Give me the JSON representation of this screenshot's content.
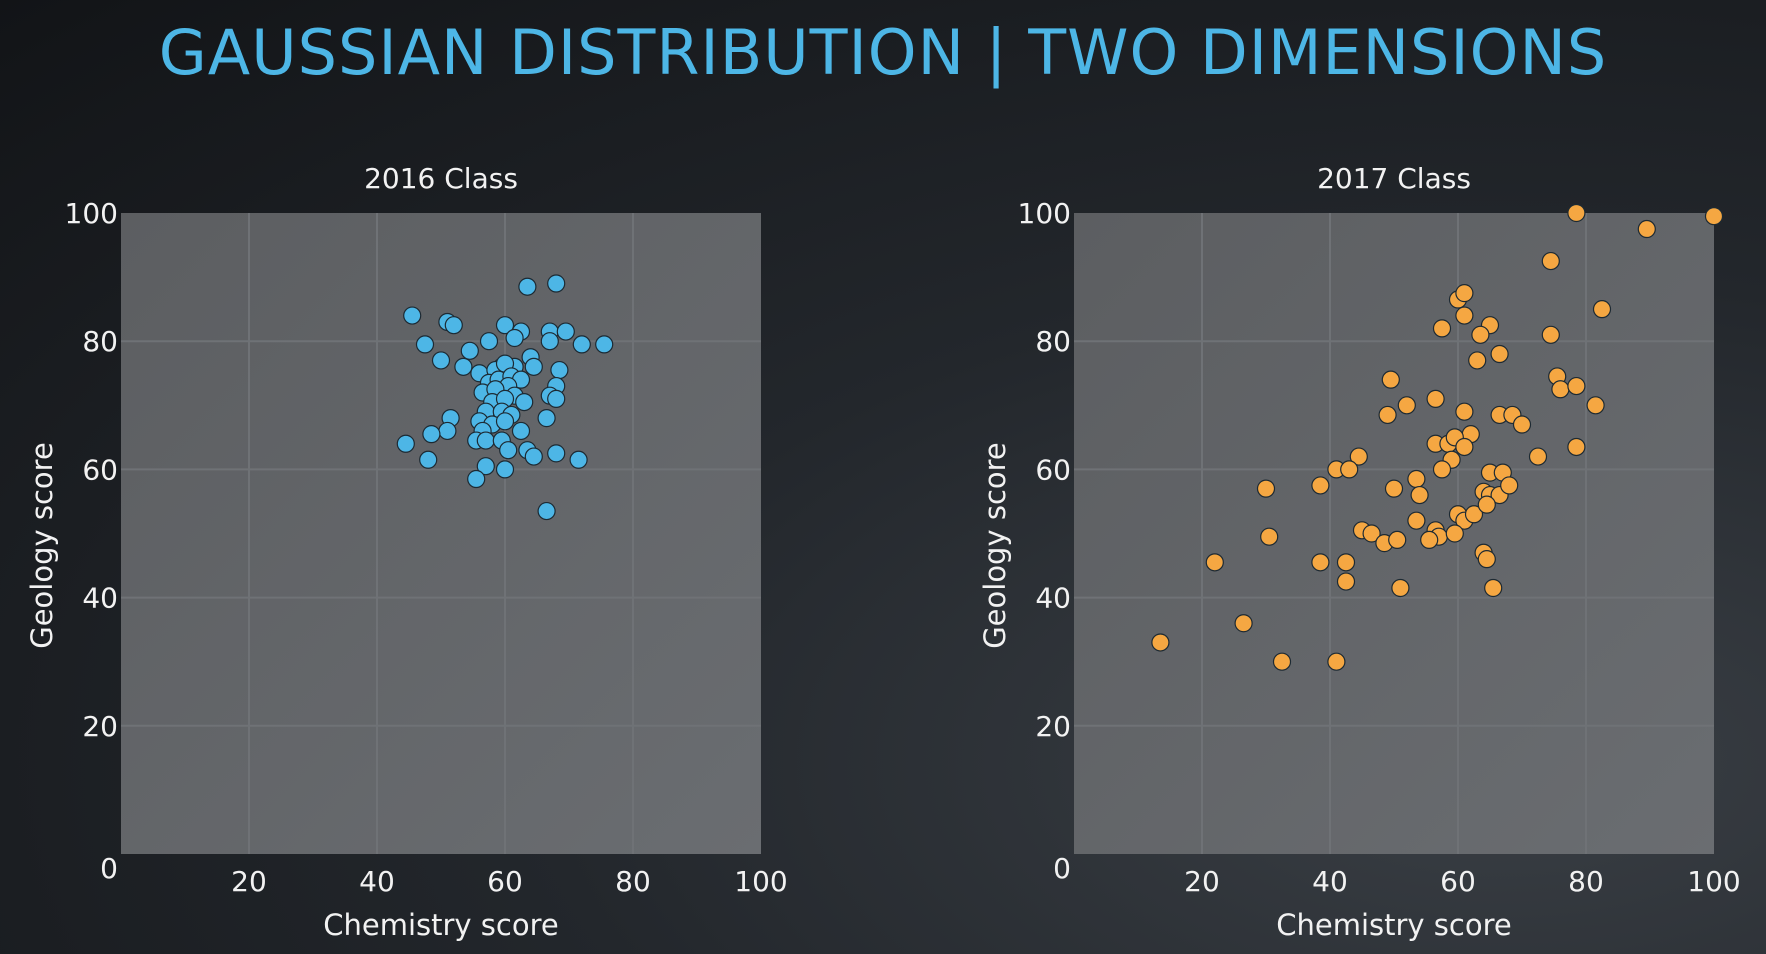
{
  "slide": {
    "title": "GAUSSIAN DISTRIBUTION | TWO DIMENSIONS"
  },
  "chart_data": [
    {
      "type": "scatter",
      "title": "2016 Class",
      "xlabel": "Chemistry score",
      "ylabel": "Geology score",
      "xlim": [
        0,
        100
      ],
      "ylim": [
        0,
        100
      ],
      "xticks": [
        20,
        40,
        60,
        80,
        100
      ],
      "yticks": [
        20,
        40,
        60,
        80,
        100
      ],
      "origin_label": "0",
      "grid": true,
      "color": "#4db6e6",
      "points": [
        [
          63.5,
          88.5
        ],
        [
          68,
          89
        ],
        [
          45.5,
          84
        ],
        [
          51,
          83
        ],
        [
          52,
          82.5
        ],
        [
          60,
          82.5
        ],
        [
          62.5,
          81.5
        ],
        [
          67,
          81.5
        ],
        [
          69.5,
          81.5
        ],
        [
          67,
          80
        ],
        [
          57.5,
          80
        ],
        [
          61.5,
          80.5
        ],
        [
          47.5,
          79.5
        ],
        [
          72,
          79.5
        ],
        [
          75.5,
          79.5
        ],
        [
          54.5,
          78.5
        ],
        [
          50,
          77
        ],
        [
          64,
          77.5
        ],
        [
          53.5,
          76
        ],
        [
          59.5,
          76
        ],
        [
          61.5,
          76
        ],
        [
          64.5,
          76
        ],
        [
          56,
          75
        ],
        [
          58.5,
          75.5
        ],
        [
          60,
          76.5
        ],
        [
          68.5,
          75.5
        ],
        [
          57.5,
          73.5
        ],
        [
          59,
          74
        ],
        [
          61,
          74.5
        ],
        [
          62.5,
          74
        ],
        [
          60.5,
          73
        ],
        [
          68,
          73
        ],
        [
          56.5,
          72
        ],
        [
          58.5,
          72.5
        ],
        [
          61.5,
          71.5
        ],
        [
          67,
          71.5
        ],
        [
          68,
          71
        ],
        [
          58,
          70.5
        ],
        [
          60,
          71
        ],
        [
          63,
          70.5
        ],
        [
          57,
          69
        ],
        [
          59.5,
          69
        ],
        [
          61,
          68.5
        ],
        [
          66.5,
          68
        ],
        [
          51.5,
          68
        ],
        [
          56,
          67.5
        ],
        [
          58,
          67
        ],
        [
          60,
          67.5
        ],
        [
          51,
          66
        ],
        [
          48.5,
          65.5
        ],
        [
          56.5,
          66
        ],
        [
          62.5,
          66
        ],
        [
          55.5,
          64.5
        ],
        [
          57,
          64.5
        ],
        [
          59.5,
          64.5
        ],
        [
          44.5,
          64
        ],
        [
          60.5,
          63
        ],
        [
          63.5,
          63
        ],
        [
          64.5,
          62
        ],
        [
          68,
          62.5
        ],
        [
          48,
          61.5
        ],
        [
          71.5,
          61.5
        ],
        [
          57,
          60.5
        ],
        [
          60,
          60
        ],
        [
          55.5,
          58.5
        ],
        [
          66.5,
          53.5
        ]
      ]
    },
    {
      "type": "scatter",
      "title": "2017 Class",
      "xlabel": "Chemistry score",
      "ylabel": "Geology score",
      "xlim": [
        0,
        100
      ],
      "ylim": [
        0,
        100
      ],
      "xticks": [
        20,
        40,
        60,
        80,
        100
      ],
      "yticks": [
        20,
        40,
        60,
        80,
        100
      ],
      "origin_label": "0",
      "grid": true,
      "color": "#f5a742",
      "points": [
        [
          78.5,
          100
        ],
        [
          100,
          99.5
        ],
        [
          89.5,
          97.5
        ],
        [
          74.5,
          92.5
        ],
        [
          60,
          86.5
        ],
        [
          61,
          87.5
        ],
        [
          82.5,
          85
        ],
        [
          61,
          84
        ],
        [
          65,
          82.5
        ],
        [
          57.5,
          82
        ],
        [
          63.5,
          81
        ],
        [
          74.5,
          81
        ],
        [
          66.5,
          78
        ],
        [
          63,
          77
        ],
        [
          75.5,
          74.5
        ],
        [
          76,
          72.5
        ],
        [
          78.5,
          73
        ],
        [
          49.5,
          74
        ],
        [
          56.5,
          71
        ],
        [
          52,
          70
        ],
        [
          61,
          69
        ],
        [
          81.5,
          70
        ],
        [
          49,
          68.5
        ],
        [
          66.5,
          68.5
        ],
        [
          68.5,
          68.5
        ],
        [
          70,
          67
        ],
        [
          62,
          65.5
        ],
        [
          56.5,
          64
        ],
        [
          58.5,
          64
        ],
        [
          59.5,
          65
        ],
        [
          61,
          63.5
        ],
        [
          78.5,
          63.5
        ],
        [
          59,
          61.5
        ],
        [
          72.5,
          62
        ],
        [
          44.5,
          62
        ],
        [
          41,
          60
        ],
        [
          43,
          60
        ],
        [
          57.5,
          60
        ],
        [
          65,
          59.5
        ],
        [
          67,
          59.5
        ],
        [
          53.5,
          58.5
        ],
        [
          64,
          56.5
        ],
        [
          65,
          56
        ],
        [
          66.5,
          56
        ],
        [
          54,
          56
        ],
        [
          68,
          57.5
        ],
        [
          30,
          57
        ],
        [
          38.5,
          57.5
        ],
        [
          50,
          57
        ],
        [
          60,
          53
        ],
        [
          61,
          52
        ],
        [
          62.5,
          53
        ],
        [
          64.5,
          54.5
        ],
        [
          53.5,
          52
        ],
        [
          56.5,
          50.5
        ],
        [
          57,
          49.5
        ],
        [
          59.5,
          50
        ],
        [
          45,
          50.5
        ],
        [
          46.5,
          50
        ],
        [
          48.5,
          48.5
        ],
        [
          50.5,
          49
        ],
        [
          55.5,
          49
        ],
        [
          30.5,
          49.5
        ],
        [
          64,
          47
        ],
        [
          64.5,
          46
        ],
        [
          38.5,
          45.5
        ],
        [
          42.5,
          45.5
        ],
        [
          22,
          45.5
        ],
        [
          42.5,
          42.5
        ],
        [
          51,
          41.5
        ],
        [
          65.5,
          41.5
        ],
        [
          26.5,
          36
        ],
        [
          13.5,
          33
        ],
        [
          32.5,
          30
        ],
        [
          41,
          30
        ]
      ]
    }
  ]
}
